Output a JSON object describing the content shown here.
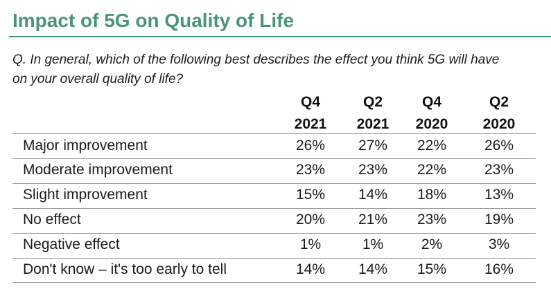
{
  "title": "Impact of 5G on Quality of Life",
  "question": "Q. In general, which of the following best describes the effect you think 5G will have on your overall quality of life?",
  "columns": [
    {
      "line1": "Q4",
      "line2": "2021"
    },
    {
      "line1": "Q2",
      "line2": "2021"
    },
    {
      "line1": "Q4",
      "line2": "2020"
    },
    {
      "line1": "Q2",
      "line2": "2020"
    }
  ],
  "rows": [
    {
      "label": "Major improvement",
      "values": [
        "26%",
        "27%",
        "22%",
        "26%"
      ]
    },
    {
      "label": "Moderate improvement",
      "values": [
        "23%",
        "23%",
        "22%",
        "23%"
      ]
    },
    {
      "label": "Slight improvement",
      "values": [
        "15%",
        "14%",
        "18%",
        "13%"
      ]
    },
    {
      "label": "No effect",
      "values": [
        "20%",
        "21%",
        "23%",
        "19%"
      ]
    },
    {
      "label": "Negative effect",
      "values": [
        "1%",
        "1%",
        "2%",
        "3%"
      ]
    },
    {
      "label": "Don't know – it's too early to tell",
      "values": [
        "14%",
        "14%",
        "15%",
        "16%"
      ]
    }
  ],
  "colors": {
    "title": "#4a9478",
    "rule": "#9a9a9a"
  }
}
